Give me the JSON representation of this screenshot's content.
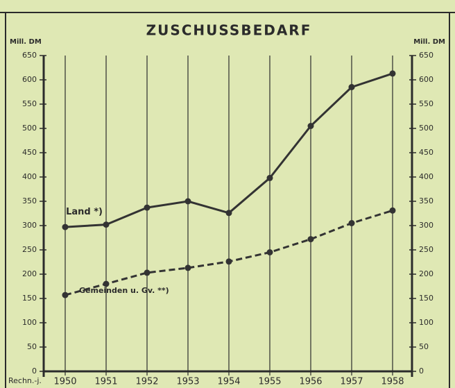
{
  "chart_data": {
    "type": "line",
    "title": "ZUSCHUSSBEDARF",
    "y_axis_label": "Mill. DM",
    "y2_axis_label": "Mill. DM",
    "x_axis_label": "Rechn.-j.",
    "categories": [
      "1950",
      "1951",
      "1952",
      "1953",
      "1954",
      "1955",
      "1956",
      "1957",
      "1958"
    ],
    "series": [
      {
        "name": "Land *)",
        "color": "#333333",
        "style": "solid",
        "values": [
          297,
          302,
          337,
          350,
          326,
          398,
          505,
          585,
          613
        ]
      },
      {
        "name": "Gemeinden u. Gv. **)",
        "color": "#333333",
        "style": "dashed",
        "values": [
          157,
          180,
          203,
          213,
          226,
          245,
          272,
          305,
          331
        ]
      }
    ],
    "ylim": [
      0,
      650
    ],
    "yticks": [
      0,
      50,
      100,
      150,
      200,
      250,
      300,
      350,
      400,
      450,
      500,
      550,
      600,
      650
    ],
    "y2lim": [
      0,
      650
    ],
    "y2ticks": [
      0,
      50,
      100,
      150,
      200,
      250,
      300,
      350,
      400,
      450,
      500,
      550,
      600,
      650
    ],
    "grid": true
  }
}
